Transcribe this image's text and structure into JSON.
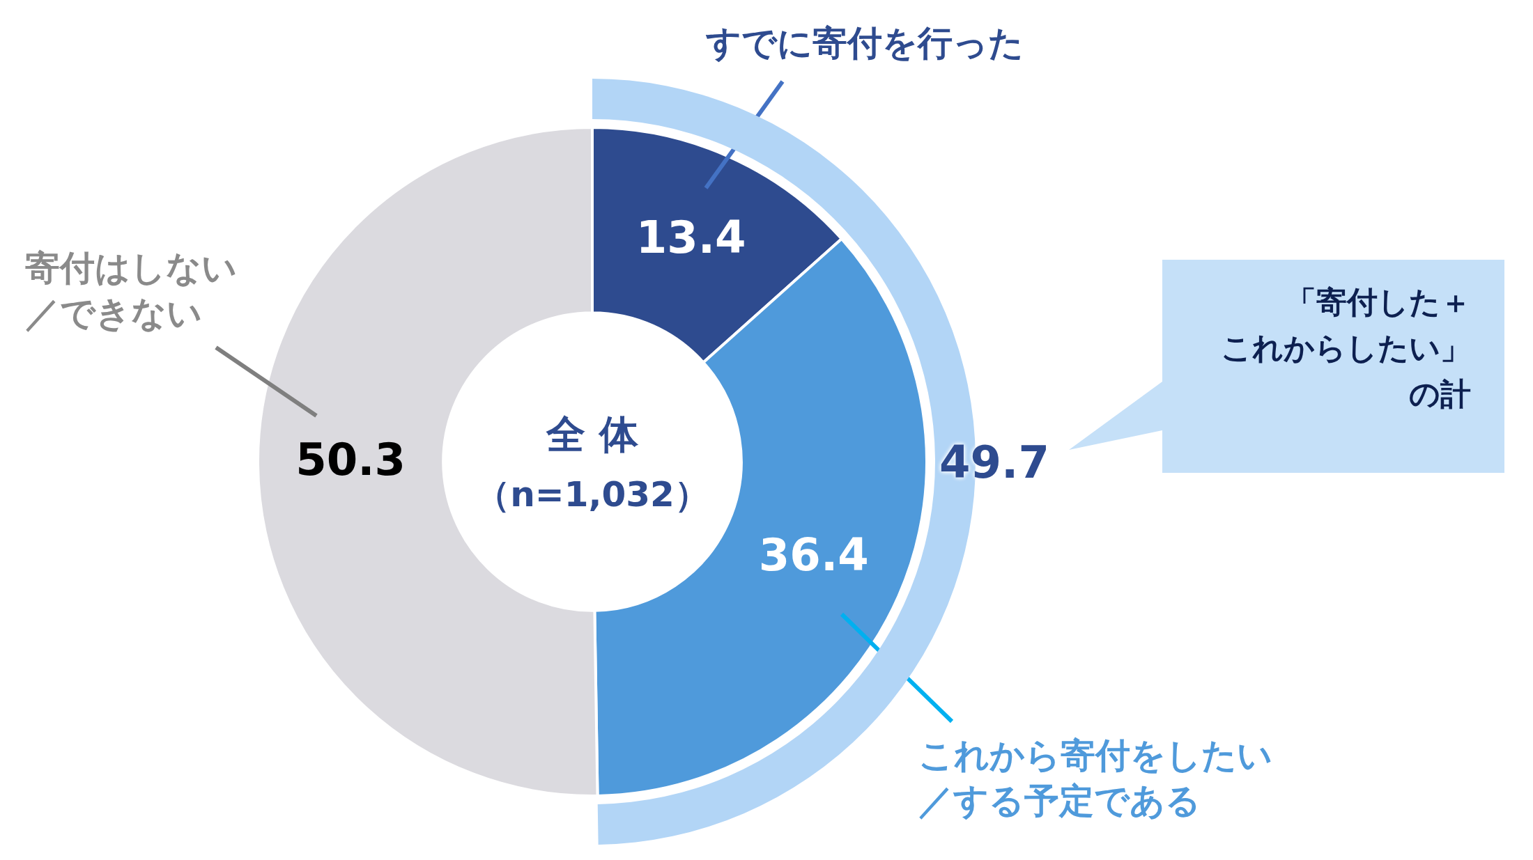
{
  "chart_data": {
    "type": "donut",
    "title": "全 体",
    "subtitle": "（n=1,032）",
    "categories": [
      "すでに寄付を行った",
      "これから寄付をしたい／する予定である",
      "寄付はしない／できない"
    ],
    "values": [
      13.4,
      36.4,
      50.3
    ],
    "colors": [
      "#2e4b8f",
      "#4f9adb",
      "#dbdadf"
    ],
    "data_labels": true,
    "annotations": [
      "49.7",
      "「寄付した＋",
      "これからしたい」",
      "の計"
    ]
  }
}
